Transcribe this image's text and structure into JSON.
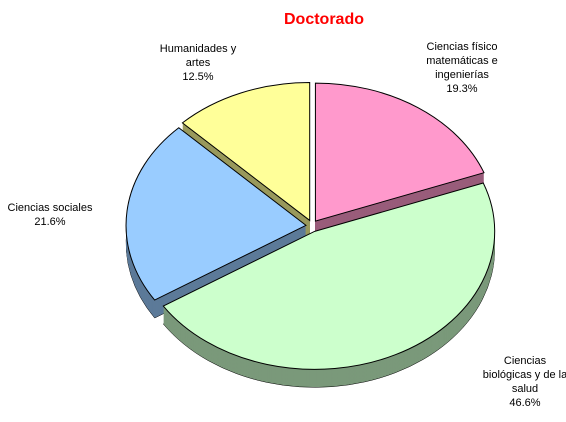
{
  "chart_data": {
    "type": "pie",
    "title": "Doctorado",
    "categories": [
      "Ciencias físico matemáticas e ingenierías",
      "Ciencias biológicas y de la salud",
      "Ciencias sociales",
      "Humanidades y artes"
    ],
    "values": [
      19.3,
      46.6,
      21.6,
      12.5
    ],
    "value_labels": [
      "19.3%",
      "46.6%",
      "21.6%",
      "12.5%"
    ],
    "colors": [
      "#ff99cc",
      "#ccffcc",
      "#99ccff",
      "#ffff99"
    ]
  }
}
